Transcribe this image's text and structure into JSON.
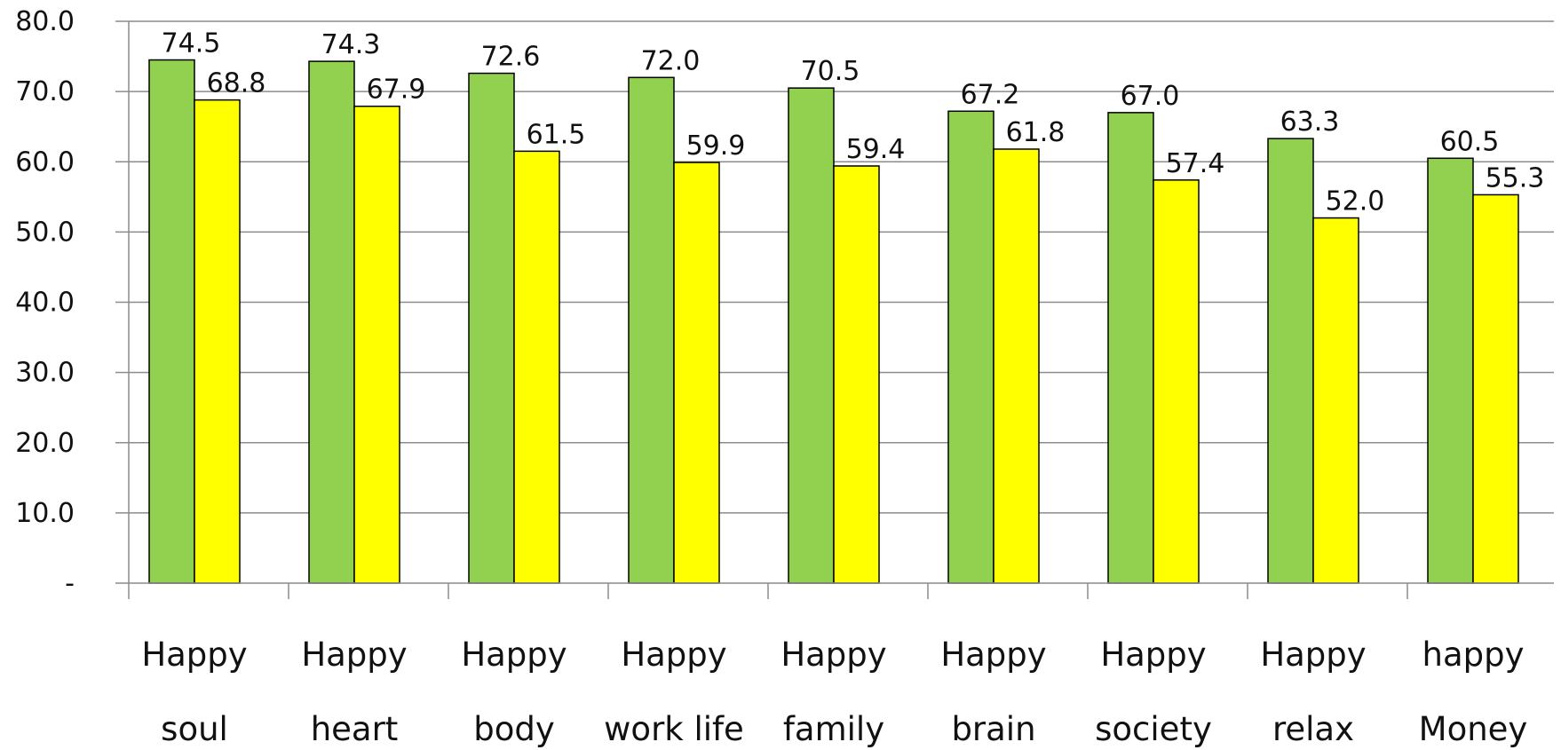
{
  "chart_data": {
    "type": "bar",
    "title": "",
    "xlabel": "",
    "ylabel": "",
    "ylim": [
      0,
      80
    ],
    "y_ticks": [
      "-",
      "10.0",
      "20.0",
      "30.0",
      "40.0",
      "50.0",
      "60.0",
      "70.0",
      "80.0"
    ],
    "y_tick_values": [
      0,
      10,
      20,
      30,
      40,
      50,
      60,
      70,
      80
    ],
    "grid": "horizontal",
    "legend": "none",
    "categories": [
      [
        "Happy",
        "soul"
      ],
      [
        "Happy",
        "heart"
      ],
      [
        "Happy",
        "body"
      ],
      [
        "Happy",
        "work life"
      ],
      [
        "Happy",
        "family"
      ],
      [
        "Happy",
        "brain"
      ],
      [
        "Happy",
        "society"
      ],
      [
        "Happy",
        "relax"
      ],
      [
        "happy",
        "Money"
      ]
    ],
    "series": [
      {
        "color": "#92D050",
        "values": [
          74.5,
          74.3,
          72.6,
          72.0,
          70.5,
          67.2,
          67.0,
          63.3,
          60.5
        ],
        "labels": [
          "74.5",
          "74.3",
          "72.6",
          "72.0",
          "70.5",
          "67.2",
          "67.0",
          "63.3",
          "60.5"
        ]
      },
      {
        "color": "#FFFF00",
        "values": [
          68.8,
          67.9,
          61.5,
          59.9,
          59.4,
          61.8,
          57.4,
          52.0,
          55.3
        ],
        "labels": [
          "68.8",
          "67.9",
          "61.5",
          "59.9",
          "59.4",
          "61.8",
          "57.4",
          "52.0",
          "55.3"
        ]
      }
    ]
  }
}
